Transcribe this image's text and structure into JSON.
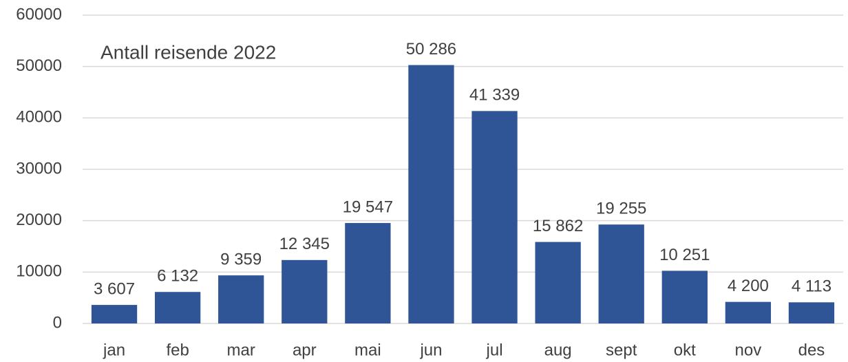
{
  "chart_data": {
    "type": "bar",
    "title": "Antall reisende 2022",
    "categories": [
      "jan",
      "feb",
      "mar",
      "apr",
      "mai",
      "jun",
      "jul",
      "aug",
      "sept",
      "okt",
      "nov",
      "des"
    ],
    "values": [
      3607,
      6132,
      9359,
      12345,
      19547,
      50286,
      41339,
      15862,
      19255,
      10251,
      4200,
      4113
    ],
    "value_labels": [
      "3 607",
      "6 132",
      "9 359",
      "12 345",
      "19 547",
      "50 286",
      "41 339",
      "15 862",
      "19 255",
      "10 251",
      "4 200",
      "4 113"
    ],
    "color": "#2f5597",
    "ylim": [
      0,
      60000
    ],
    "yticks": [
      0,
      10000,
      20000,
      30000,
      40000,
      50000,
      60000
    ],
    "grid": true
  }
}
